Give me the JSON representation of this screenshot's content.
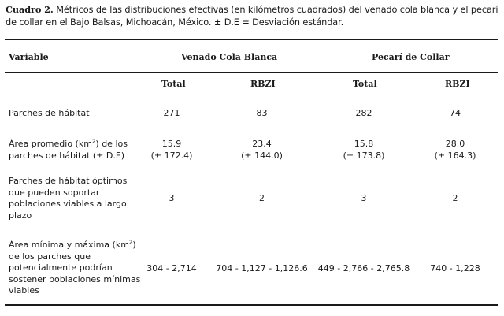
{
  "caption": {
    "label": "Cuadro 2.",
    "text": " Métricos de las distribuciones efectivas (en kilómetros cuadrados) del venado cola blanca y el pecarí de collar en el Bajo Balsas, Michoacán, México. ± D.E = Desviación estándar."
  },
  "table": {
    "header": {
      "variable": "Variable",
      "group_1": "Venado Cola Blanca",
      "group_2": "Pecarí de Collar",
      "sub": [
        "Total",
        "RBZI",
        "Total",
        "RBZI"
      ]
    },
    "rows": [
      {
        "label": "Parches de hábitat",
        "values": [
          "271",
          "83",
          "282",
          "74"
        ]
      },
      {
        "label_a": "Área promedio (km",
        "label_sup": "2",
        "label_b": ") de los parches de hábitat (± D.E)",
        "values": [
          "15.9",
          "23.4",
          "15.8",
          "28.0"
        ],
        "sd": [
          "(± 172.4)",
          "(± 144.0)",
          "(± 173.8)",
          "(± 164.3)"
        ]
      },
      {
        "label": "Parches de hábitat óptimos que pueden soportar poblaciones viables a largo plazo",
        "values": [
          "3",
          "2",
          "3",
          "2"
        ]
      },
      {
        "label_a": "Área mínima y máxima (km",
        "label_sup": "2",
        "label_b": ") de los parches que potencialmente podrían sostener poblaciones mínimas viables",
        "values": [
          "304 - 2,714",
          "704 - 1,127 - 1,126.6",
          "449 - 2,766 - 2,765.8",
          "740 - 1,228"
        ]
      }
    ]
  }
}
